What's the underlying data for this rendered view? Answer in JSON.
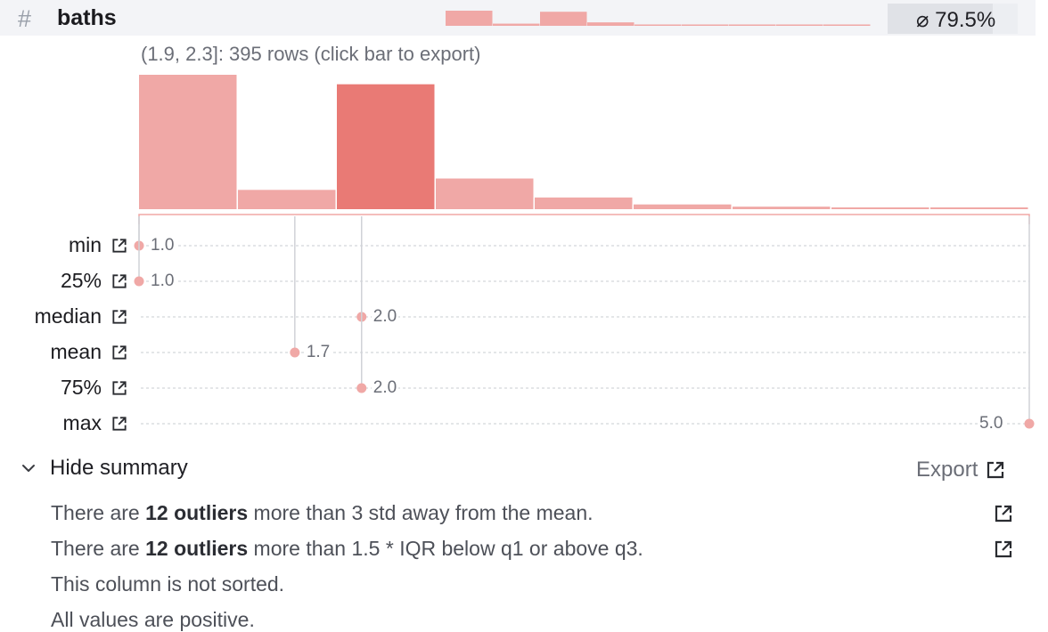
{
  "header": {
    "type_icon": "hash-icon",
    "type_glyph": "#",
    "column_name": "baths",
    "null_percent": "⌀ 79.5%",
    "null_fraction": 0.795
  },
  "histogram": {
    "hover_label": "(1.9, 2.3]: 395 rows (click bar to export)",
    "bins": [
      {
        "range": "[1.0, 1.4]",
        "count": 425
      },
      {
        "range": "(1.4, 1.9]",
        "count": 61
      },
      {
        "range": "(1.9, 2.3]",
        "count": 395
      },
      {
        "range": "(2.3, 2.8]",
        "count": 97
      },
      {
        "range": "(2.8, 3.2]",
        "count": 37
      },
      {
        "range": "(3.2, 3.7]",
        "count": 15
      },
      {
        "range": "(3.7, 4.1]",
        "count": 8
      },
      {
        "range": "(4.1, 4.6]",
        "count": 3
      },
      {
        "range": "(4.6, 5.0]",
        "count": 3
      }
    ],
    "highlighted_bin": 2,
    "x_min": 1.0,
    "x_max": 5.0,
    "colors": {
      "bar": "#f0a8a6",
      "bar_active": "#e97a75",
      "stat": "#f0a8a6"
    }
  },
  "stats": [
    {
      "key": "min",
      "label": "min",
      "value": "1.0",
      "num": 1.0
    },
    {
      "key": "q1",
      "label": "25%",
      "value": "1.0",
      "num": 1.0
    },
    {
      "key": "median",
      "label": "median",
      "value": "2.0",
      "num": 2.0
    },
    {
      "key": "mean",
      "label": "mean",
      "value": "1.7",
      "num": 1.7
    },
    {
      "key": "q3",
      "label": "75%",
      "value": "2.0",
      "num": 2.0
    },
    {
      "key": "max",
      "label": "max",
      "value": "5.0",
      "num": 5.0
    }
  ],
  "summary": {
    "toggle_label": "Hide summary",
    "export_label": "Export",
    "messages": [
      {
        "pre": "There are ",
        "bold": "12 outliers",
        "post": " more than 3 std away from the mean.",
        "has_export": true
      },
      {
        "pre": "There are ",
        "bold": "12 outliers",
        "post": " more than 1.5 * IQR below q1 or above q3.",
        "has_export": true
      },
      {
        "pre": "This column is not sorted.",
        "bold": "",
        "post": "",
        "has_export": false
      },
      {
        "pre": "All values are positive.",
        "bold": "",
        "post": "",
        "has_export": false
      }
    ]
  }
}
